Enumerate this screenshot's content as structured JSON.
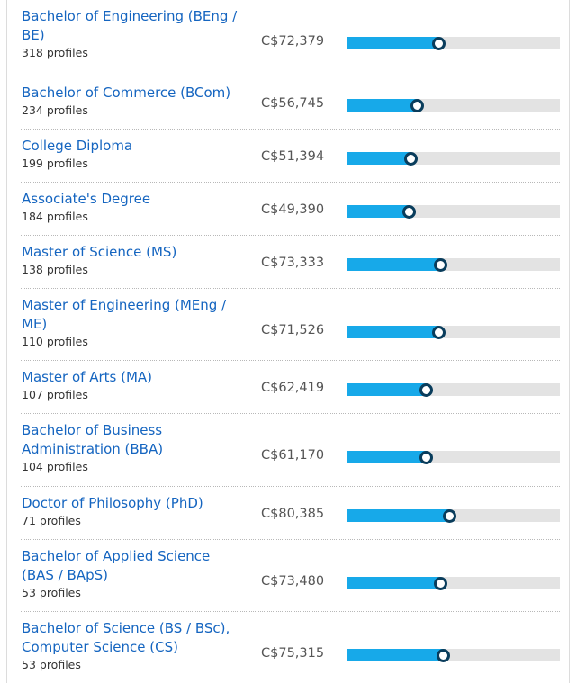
{
  "rows": [
    {
      "title": "Bachelor of Engineering (BEng / BE)",
      "count": "318 profiles",
      "salary": "C$72,379",
      "level": 0.43
    },
    {
      "title": "Bachelor of Commerce (BCom)",
      "count": "234 profiles",
      "salary": "C$56,745",
      "level": 0.33
    },
    {
      "title": "College Diploma",
      "count": "199 profiles",
      "salary": "C$51,394",
      "level": 0.3
    },
    {
      "title": "Associate's Degree",
      "count": "184 profiles",
      "salary": "C$49,390",
      "level": 0.29
    },
    {
      "title": "Master of Science (MS)",
      "count": "138 profiles",
      "salary": "C$73,333",
      "level": 0.44
    },
    {
      "title": "Master of Engineering (MEng / ME)",
      "count": "110 profiles",
      "salary": "C$71,526",
      "level": 0.43
    },
    {
      "title": "Master of Arts (MA)",
      "count": "107 profiles",
      "salary": "C$62,419",
      "level": 0.37
    },
    {
      "title": "Bachelor of Business Administration (BBA)",
      "count": "104 profiles",
      "salary": "C$61,170",
      "level": 0.37
    },
    {
      "title": "Doctor of Philosophy (PhD)",
      "count": "71 profiles",
      "salary": "C$80,385",
      "level": 0.48
    },
    {
      "title": "Bachelor of Applied Science (BAS / BApS)",
      "count": "53 profiles",
      "salary": "C$73,480",
      "level": 0.44
    },
    {
      "title": "Bachelor of Science (BS / BSc), Computer Science (CS)",
      "count": "53 profiles",
      "salary": "C$75,315",
      "level": 0.45
    }
  ],
  "colors": {
    "link": "#1565c0",
    "bar_fill": "#17a9e9",
    "bar_track": "#e3e3e3",
    "knob_border": "#0a3d5c"
  }
}
